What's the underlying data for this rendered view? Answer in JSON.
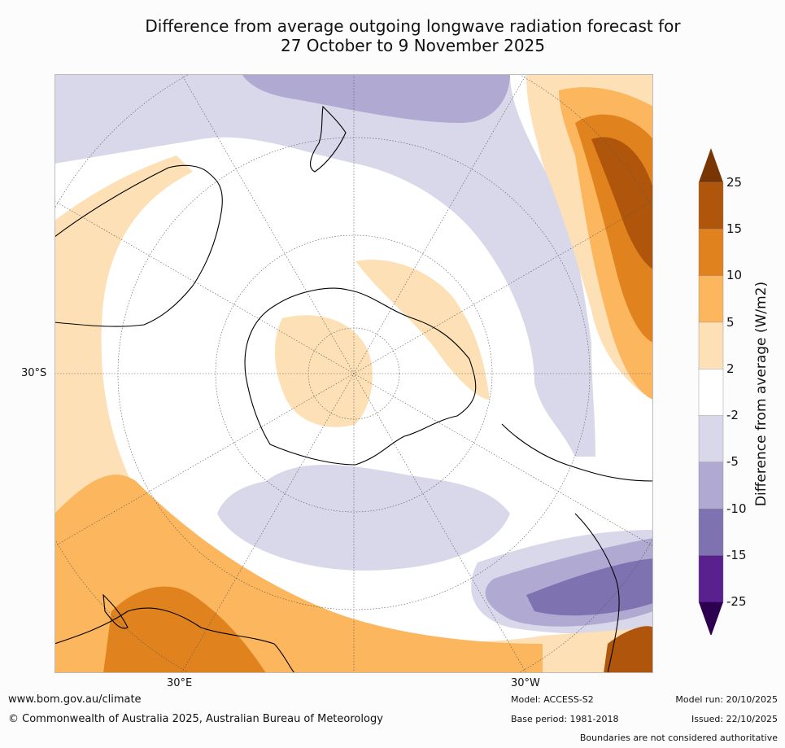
{
  "title": {
    "line1": "Difference from average outgoing longwave radiation forecast for",
    "line2": "27 October to 9 November 2025"
  },
  "map": {
    "projection": "south polar stereographic",
    "labels": {
      "lat_left": "30°S",
      "lon_bottom_left": "30°E",
      "lon_bottom_right": "30°W"
    }
  },
  "colorbar": {
    "title": "Difference from average (W/m2)",
    "ticks": [
      "25",
      "15",
      "10",
      "5",
      "2",
      "-2",
      "-5",
      "-10",
      "-15",
      "-25"
    ],
    "colors": {
      "over": "#7a3505",
      "15_25": "#b0560c",
      "10_15": "#e0821e",
      "5_10": "#fbb65e",
      "2_5": "#fde0b5",
      "n2_2": "#ffffff",
      "n5_n2": "#d8d8ea",
      "n10_n5": "#b0a9d2",
      "n15_n10": "#7f72b0",
      "n25_n15": "#59218d",
      "under": "#2e0050"
    }
  },
  "footer": {
    "website": "www.bom.gov.au/climate",
    "copyright": "© Commonwealth of Australia 2025, Australian Bureau of Meteorology",
    "model": "Model: ACCESS-S2",
    "base_period": "Base period: 1981-2018",
    "model_run": "Model run: 20/10/2025",
    "issued": "Issued: 22/10/2025",
    "disclaimer": "Boundaries are not considered authoritative"
  }
}
